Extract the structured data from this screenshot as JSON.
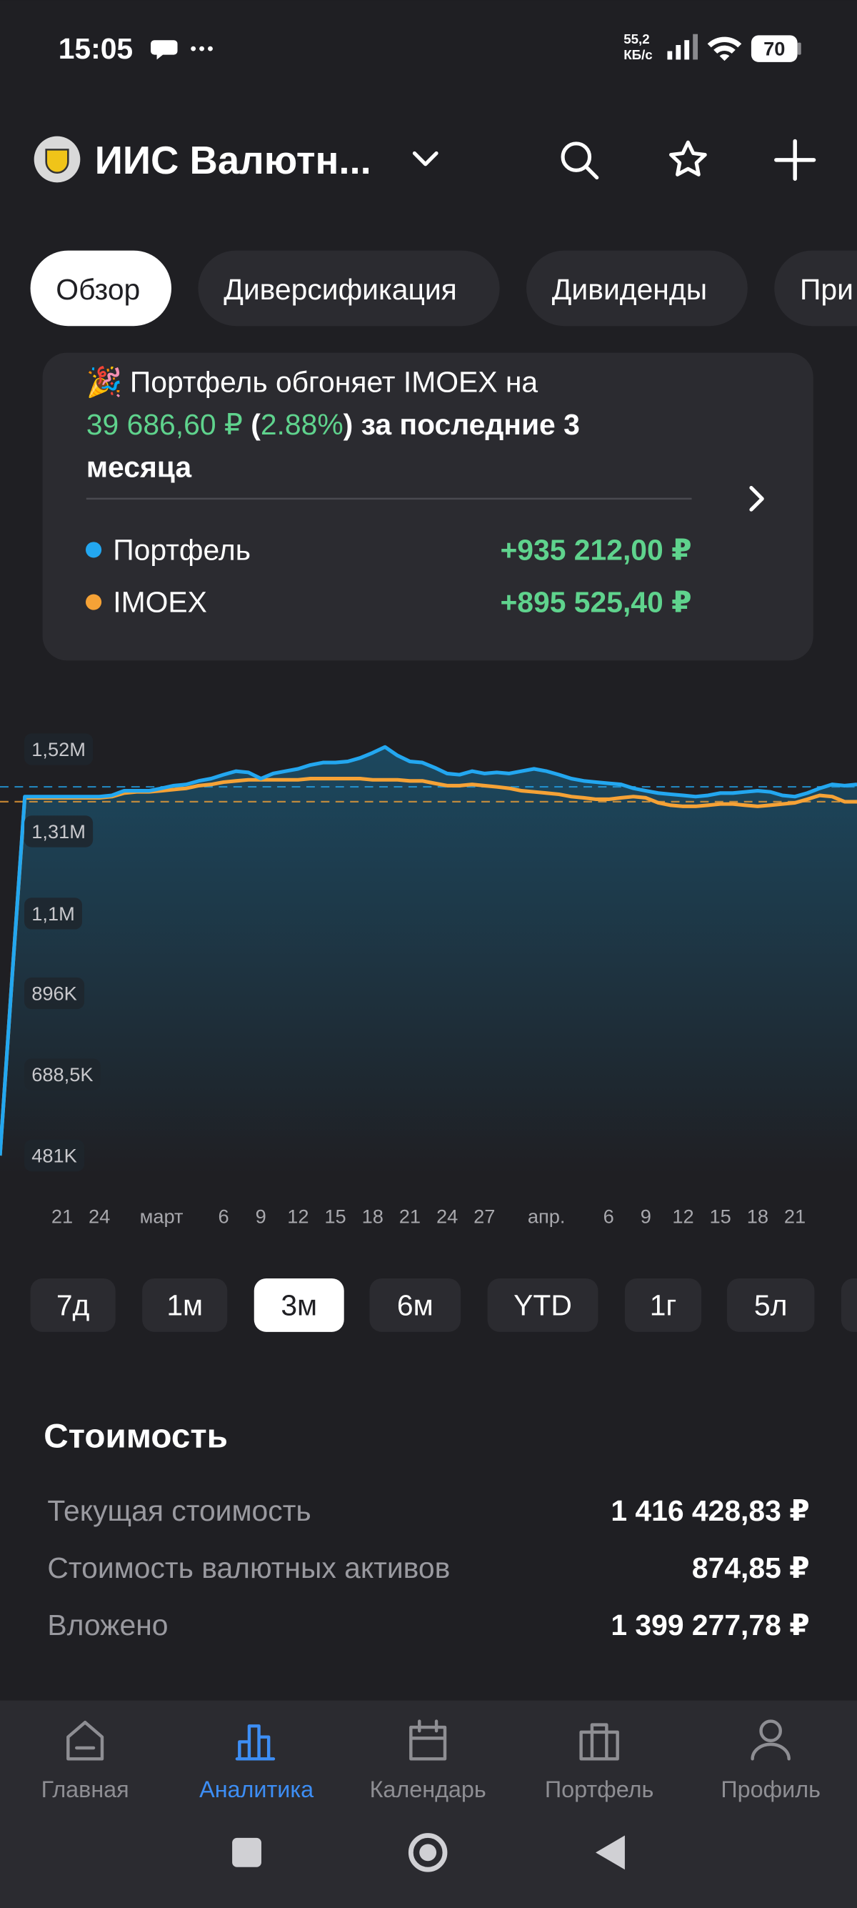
{
  "status_bar": {
    "time": "15:05",
    "network_speed": [
      "55,2",
      "КБ/с"
    ],
    "battery": "70"
  },
  "header": {
    "title": "ИИС Валютн..."
  },
  "tabs": [
    {
      "label": "Обзор",
      "selected": true
    },
    {
      "label": "Диверсификация",
      "selected": false
    },
    {
      "label": "Дивиденды",
      "selected": false
    },
    {
      "label": "При",
      "selected": false
    }
  ],
  "banner": {
    "emoji": "🎉",
    "line1": "Портфель обгоняет IMOEX на",
    "line2": [
      {
        "text": "39 686,60 ₽",
        "highlight": true
      },
      {
        "text": " (",
        "highlight": false
      },
      {
        "text": "2.88%",
        "highlight": true
      },
      {
        "text": ") за последние 3",
        "highlight": false
      }
    ],
    "line3": "месяца",
    "changes": [
      "+935 212,00 ₽",
      "+895 525,40 ₽"
    ]
  },
  "chart_data": {
    "type": "line",
    "xlim": [
      0,
      69
    ],
    "xticks": [
      {
        "value": 5,
        "label": "21"
      },
      {
        "value": 8,
        "label": "24"
      },
      {
        "value": 13,
        "label": "март"
      },
      {
        "value": 18,
        "label": "6"
      },
      {
        "value": 21,
        "label": "9"
      },
      {
        "value": 24,
        "label": "12"
      },
      {
        "value": 27,
        "label": "15"
      },
      {
        "value": 30,
        "label": "18"
      },
      {
        "value": 33,
        "label": "21"
      },
      {
        "value": 36,
        "label": "24"
      },
      {
        "value": 39,
        "label": "27"
      },
      {
        "value": 44,
        "label": "апр."
      },
      {
        "value": 49,
        "label": "6"
      },
      {
        "value": 52,
        "label": "9"
      },
      {
        "value": 55,
        "label": "12"
      },
      {
        "value": 58,
        "label": "15"
      },
      {
        "value": 61,
        "label": "18"
      },
      {
        "value": 64,
        "label": "21"
      }
    ],
    "ylim": [
      481000,
      1520000
    ],
    "yticks": [
      {
        "value": 1520000,
        "label": "1,52M"
      },
      {
        "value": 1310000,
        "label": "1,31M"
      },
      {
        "value": 1100000,
        "label": "1,1M"
      },
      {
        "value": 896000,
        "label": "896K"
      },
      {
        "value": 688500,
        "label": "688,5K"
      },
      {
        "value": 481000,
        "label": "481K"
      }
    ],
    "series": [
      {
        "name": "Портфель",
        "color": "#23a7f0",
        "reference": 1424000,
        "area": true,
        "values": [
          481000,
          948000,
          1399000,
          1399000,
          1399000,
          1399000,
          1399000,
          1399000,
          1399000,
          1402000,
          1414000,
          1414000,
          1414000,
          1420000,
          1427000,
          1430000,
          1439000,
          1445000,
          1455000,
          1464000,
          1461000,
          1445000,
          1458000,
          1464000,
          1470000,
          1480000,
          1486000,
          1486000,
          1489000,
          1498000,
          1511000,
          1526000,
          1504000,
          1489000,
          1486000,
          1473000,
          1458000,
          1455000,
          1464000,
          1458000,
          1461000,
          1458000,
          1464000,
          1470000,
          1464000,
          1455000,
          1445000,
          1439000,
          1436000,
          1433000,
          1430000,
          1420000,
          1414000,
          1408000,
          1405000,
          1402000,
          1399000,
          1402000,
          1408000,
          1408000,
          1411000,
          1414000,
          1411000,
          1402000,
          1399000,
          1408000,
          1420000,
          1430000,
          1427000,
          1430000
        ]
      },
      {
        "name": "IMOEX",
        "color": "#f5a236",
        "reference": 1386000,
        "area": false,
        "values": [
          481000,
          948000,
          1396000,
          1396000,
          1396000,
          1396000,
          1396000,
          1396000,
          1396000,
          1399000,
          1408000,
          1411000,
          1411000,
          1414000,
          1417000,
          1420000,
          1427000,
          1430000,
          1436000,
          1439000,
          1442000,
          1442000,
          1442000,
          1442000,
          1442000,
          1445000,
          1445000,
          1445000,
          1445000,
          1445000,
          1442000,
          1442000,
          1442000,
          1439000,
          1439000,
          1433000,
          1427000,
          1427000,
          1430000,
          1427000,
          1424000,
          1420000,
          1414000,
          1411000,
          1408000,
          1405000,
          1399000,
          1396000,
          1392000,
          1392000,
          1396000,
          1399000,
          1396000,
          1383000,
          1377000,
          1374000,
          1374000,
          1377000,
          1380000,
          1380000,
          1377000,
          1374000,
          1377000,
          1380000,
          1383000,
          1392000,
          1402000,
          1399000,
          1386000,
          1386000
        ]
      }
    ]
  },
  "periods": [
    {
      "label": "7д",
      "selected": false
    },
    {
      "label": "1м",
      "selected": false
    },
    {
      "label": "3м",
      "selected": true
    },
    {
      "label": "6м",
      "selected": false
    },
    {
      "label": "YTD",
      "selected": false
    },
    {
      "label": "1г",
      "selected": false
    },
    {
      "label": "5л",
      "selected": false
    }
  ],
  "value_section": {
    "title": "Стоимость",
    "rows": [
      [
        "Текущая стоимость",
        "1 416 428,83 ₽"
      ],
      [
        "Стоимость валютных активов",
        "874,85 ₽"
      ],
      [
        "Вложено",
        "1 399 277,78 ₽"
      ]
    ]
  },
  "nav": [
    {
      "label": "Главная",
      "active": false
    },
    {
      "label": "Аналитика",
      "active": true
    },
    {
      "label": "Календарь",
      "active": false
    },
    {
      "label": "Портфель",
      "active": false
    },
    {
      "label": "Профиль",
      "active": false
    }
  ]
}
